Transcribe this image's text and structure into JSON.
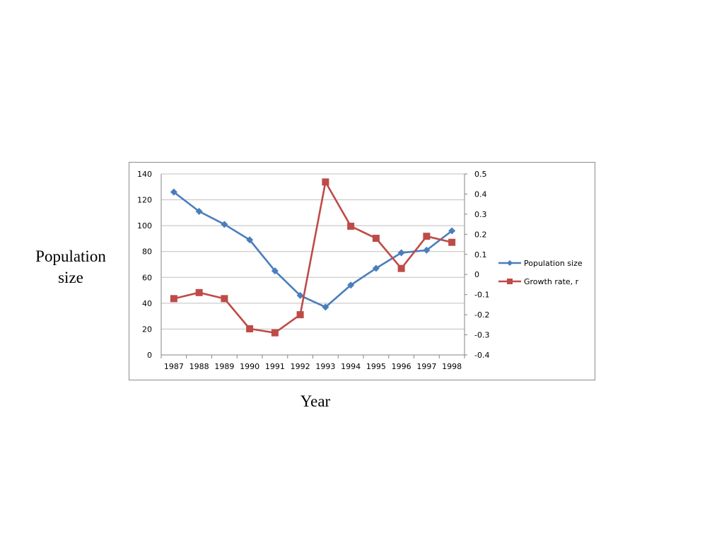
{
  "chart_data": {
    "type": "line",
    "title": "",
    "xlabel": "Year",
    "ylabel": "Population size",
    "categories": [
      "1987",
      "1988",
      "1989",
      "1990",
      "1991",
      "1992",
      "1993",
      "1994",
      "1995",
      "1996",
      "1997",
      "1998"
    ],
    "y_left": {
      "min": 0,
      "max": 140,
      "ticks": [
        "0",
        "20",
        "40",
        "60",
        "80",
        "100",
        "120",
        "140"
      ]
    },
    "y_right": {
      "min": -0.4,
      "max": 0.5,
      "ticks": [
        "-0.4",
        "-0.3",
        "-0.2",
        "-0.1",
        "0",
        "0.1",
        "0.2",
        "0.3",
        "0.4",
        "0.5"
      ]
    },
    "grid": true,
    "legend_position": "right",
    "series": [
      {
        "name": "Population size",
        "axis": "left",
        "marker": "diamond",
        "color": "#4a7ebb",
        "values": [
          126,
          111,
          101,
          89,
          65,
          46,
          37,
          54,
          67,
          79,
          81,
          96
        ]
      },
      {
        "name": "Growth rate, r",
        "axis": "right",
        "marker": "square",
        "color": "#be4b48",
        "values": [
          -0.12,
          -0.09,
          -0.12,
          -0.27,
          -0.29,
          -0.2,
          0.46,
          0.24,
          0.18,
          0.03,
          0.19,
          0.16
        ]
      }
    ]
  }
}
